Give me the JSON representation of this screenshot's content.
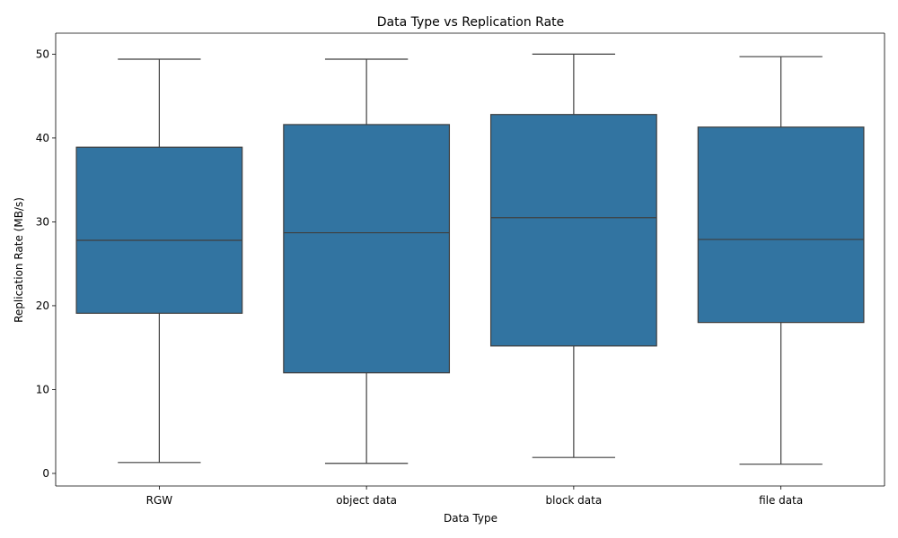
{
  "chart_data": {
    "type": "box",
    "title": "Data Type vs Replication Rate",
    "xlabel": "Data Type",
    "ylabel": "Replication Rate (MB/s)",
    "ylim": [
      -1.5,
      52.5
    ],
    "yticks": [
      0,
      10,
      20,
      30,
      40,
      50
    ],
    "grid": false,
    "legend": "none",
    "box_color": "#3274a1",
    "line_color": "#3f3f3f",
    "categories": [
      "RGW",
      "object data",
      "block data",
      "file data"
    ],
    "series": [
      {
        "values": [
          {
            "min": 1.3,
            "q1": 19.1,
            "median": 27.8,
            "q3": 38.9,
            "max": 49.4
          },
          {
            "min": 1.2,
            "q1": 12.0,
            "median": 28.7,
            "q3": 41.6,
            "max": 49.4
          },
          {
            "min": 1.9,
            "q1": 15.2,
            "median": 30.5,
            "q3": 42.8,
            "max": 50.0
          },
          {
            "min": 1.1,
            "q1": 18.0,
            "median": 27.9,
            "q3": 41.3,
            "max": 49.7
          }
        ]
      }
    ]
  }
}
